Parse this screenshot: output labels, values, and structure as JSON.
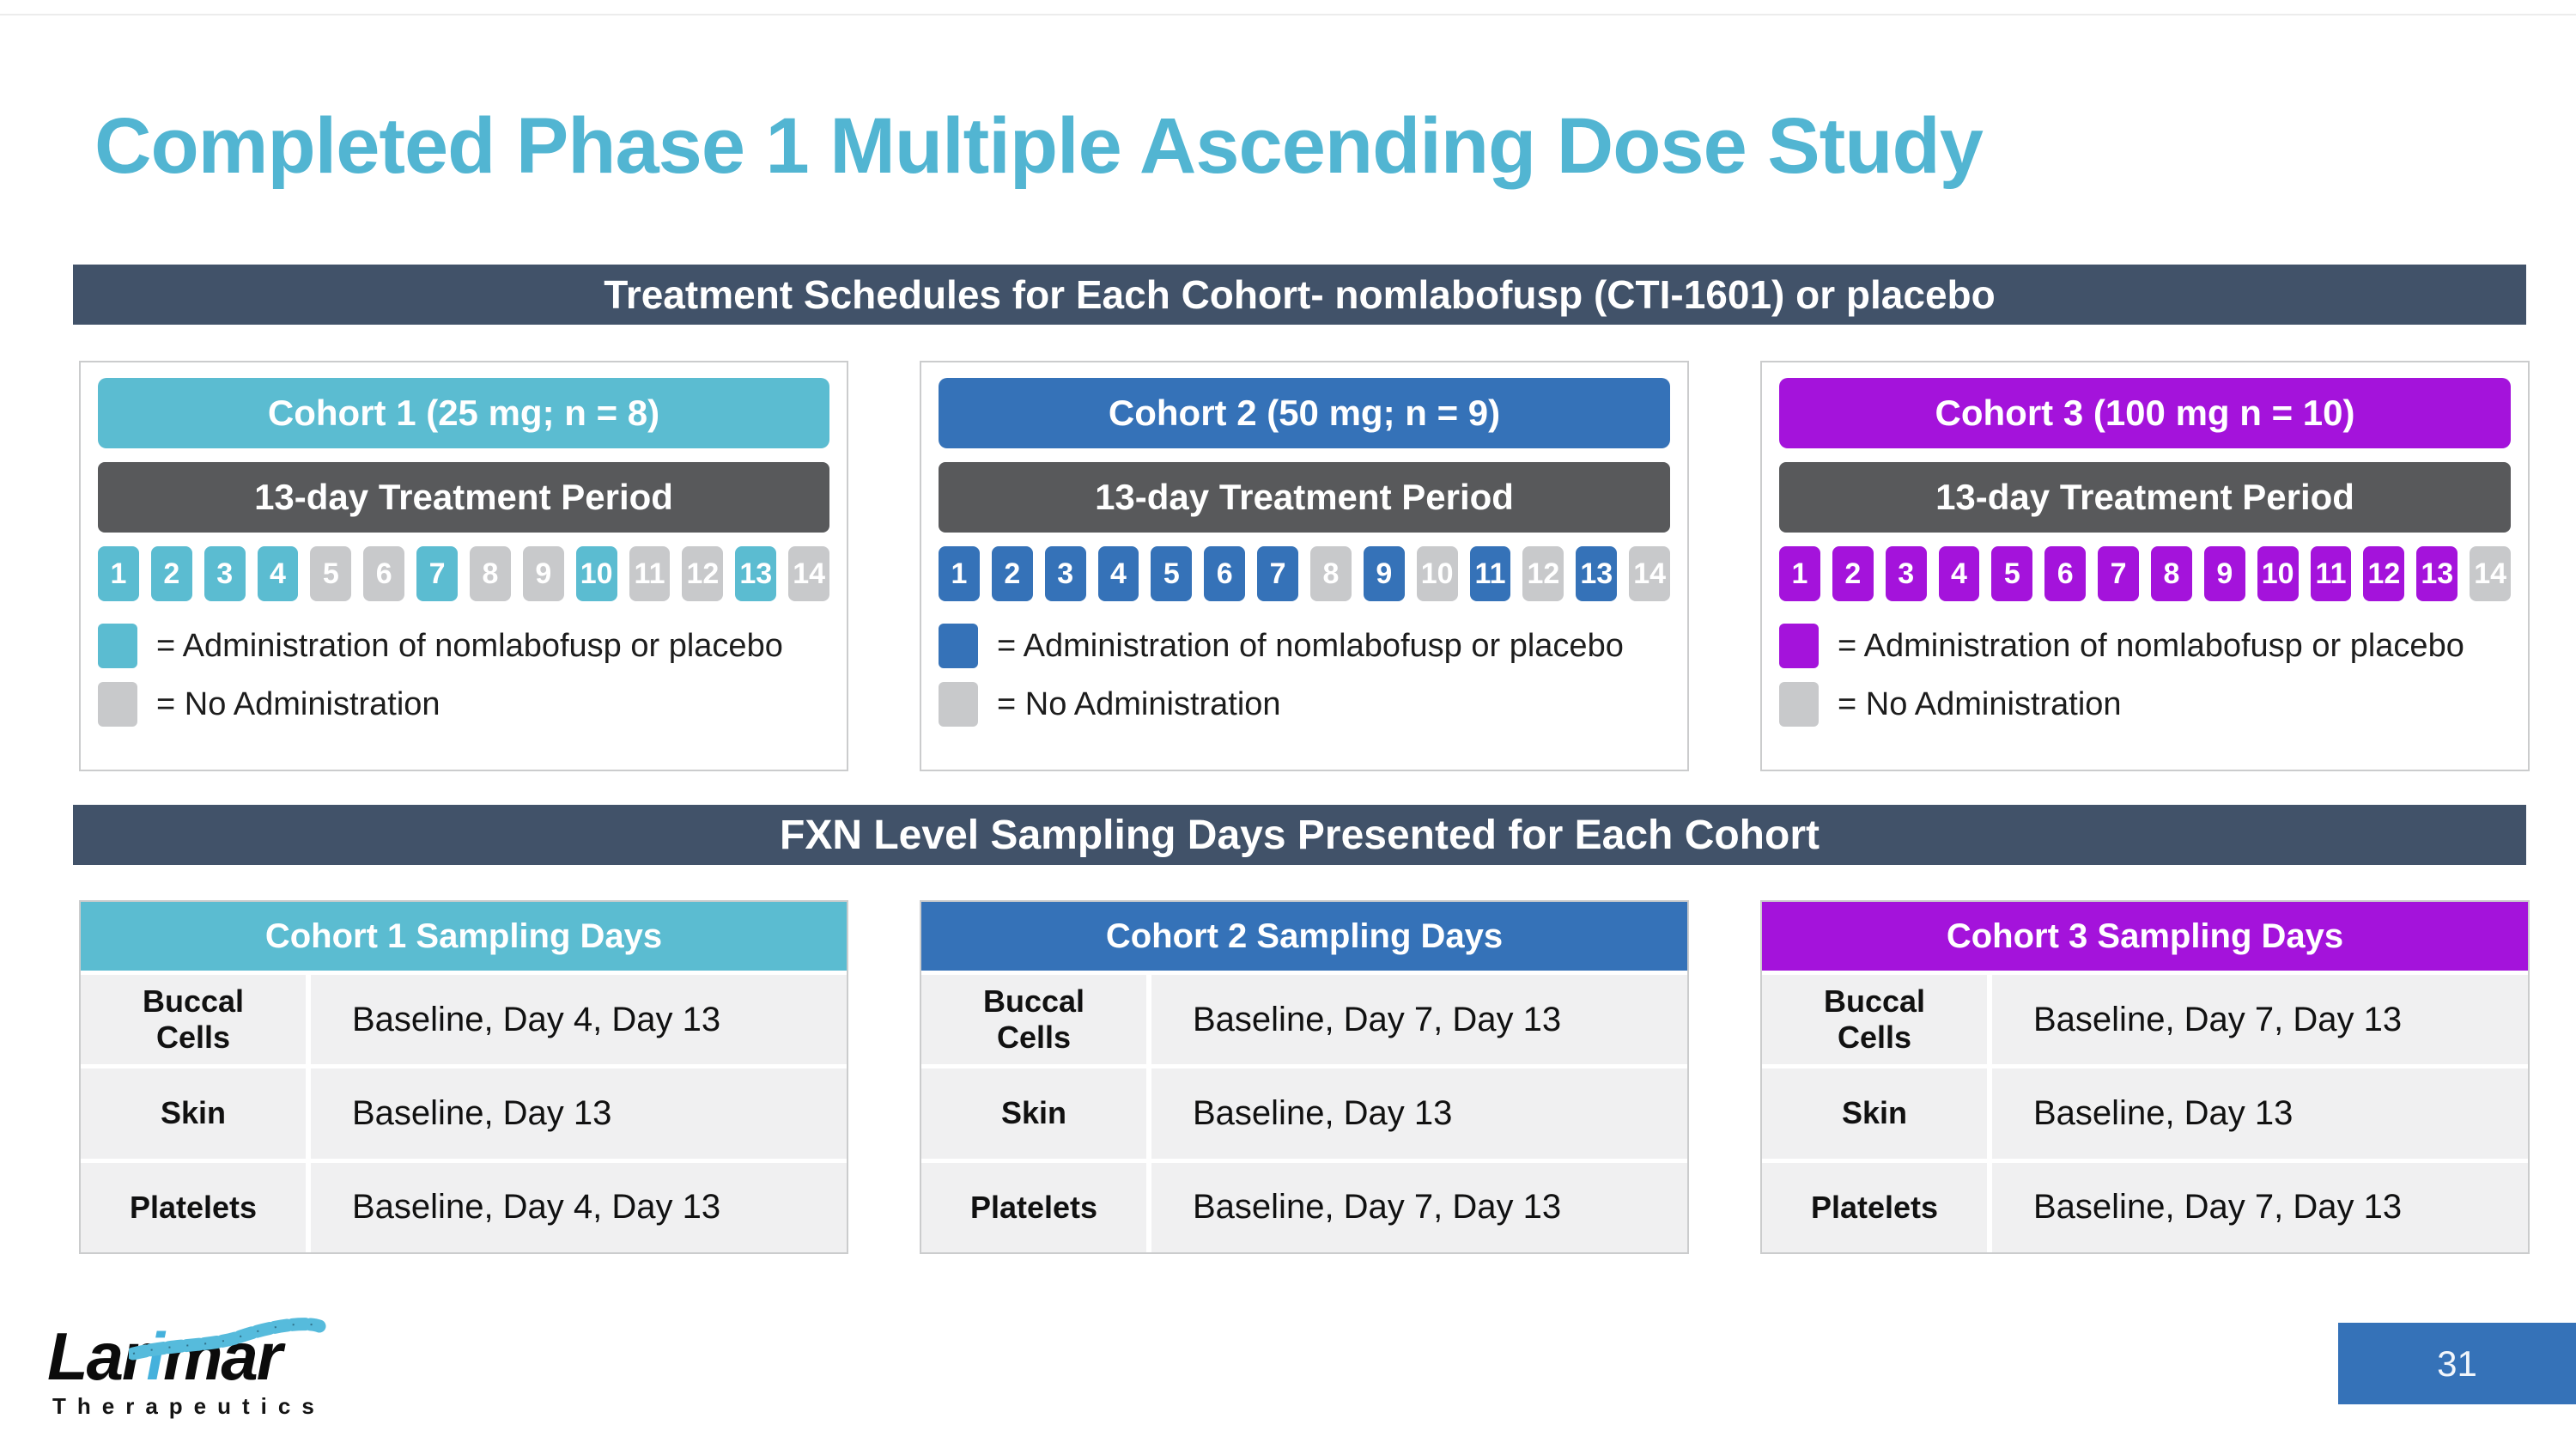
{
  "slide": {
    "title": "Completed Phase 1 Multiple Ascending Dose Study"
  },
  "banners": {
    "treatment": "Treatment Schedules for Each Cohort- nomlabofusp (CTI-1601) or placebo",
    "sampling": "FXN Level Sampling Days Presented for Each Cohort"
  },
  "colors": {
    "title_teal": "#52b5d2",
    "banner_bg": "#415269",
    "treatment_bar_bg": "#58595b",
    "inactive_day": "#c8c9cb",
    "teal": "#5bbcd1",
    "blue": "#3572b8",
    "purple": "#a413db"
  },
  "day_labels": [
    "1",
    "2",
    "3",
    "4",
    "5",
    "6",
    "7",
    "8",
    "9",
    "10",
    "11",
    "12",
    "13",
    "14"
  ],
  "cohorts": [
    {
      "header": "Cohort 1 (25 mg; n = 8)",
      "treatment_period": "13-day Treatment Period",
      "color": "#5bbcd1",
      "active_days": [
        1,
        2,
        3,
        4,
        7,
        10,
        13
      ],
      "legend_admin": "= Administration of nomlabofusp  or placebo",
      "legend_none": "= No Administration"
    },
    {
      "header": "Cohort 2 (50 mg; n = 9)",
      "treatment_period": "13-day Treatment Period",
      "color": "#3572b8",
      "active_days": [
        1,
        2,
        3,
        4,
        5,
        6,
        7,
        9,
        11,
        13
      ],
      "legend_admin": "= Administration of nomlabofusp or placebo",
      "legend_none": "= No Administration"
    },
    {
      "header": "Cohort 3 (100 mg n = 10)",
      "treatment_period": "13-day Treatment Period",
      "color": "#a413db",
      "active_days": [
        1,
        2,
        3,
        4,
        5,
        6,
        7,
        8,
        9,
        10,
        11,
        12,
        13
      ],
      "legend_admin": "= Administration of nomlabofusp or placebo",
      "legend_none": "= No Administration"
    }
  ],
  "sampling_tables": [
    {
      "header": "Cohort 1 Sampling Days",
      "color": "#5bbcd1",
      "rows": [
        {
          "label": "Buccal Cells",
          "value": "Baseline, Day 4, Day 13"
        },
        {
          "label": "Skin",
          "value": "Baseline, Day 13"
        },
        {
          "label": "Platelets",
          "value": "Baseline, Day 4, Day 13"
        }
      ]
    },
    {
      "header": "Cohort 2 Sampling Days",
      "color": "#3572b8",
      "rows": [
        {
          "label": "Buccal Cells",
          "value": "Baseline, Day 7, Day 13"
        },
        {
          "label": "Skin",
          "value": "Baseline, Day 13"
        },
        {
          "label": "Platelets",
          "value": "Baseline, Day 7, Day 13"
        }
      ]
    },
    {
      "header": "Cohort 3 Sampling Days",
      "color": "#a413db",
      "rows": [
        {
          "label": "Buccal Cells",
          "value": "Baseline, Day 7, Day 13"
        },
        {
          "label": "Skin",
          "value": "Baseline, Day 13"
        },
        {
          "label": "Platelets",
          "value": "Baseline, Day 7, Day 13"
        }
      ]
    }
  ],
  "footer": {
    "logo_primary_a": "Lar",
    "logo_primary_i": "i",
    "logo_primary_b": "mar",
    "logo_secondary": "Therapeutics",
    "page_number": "31"
  }
}
